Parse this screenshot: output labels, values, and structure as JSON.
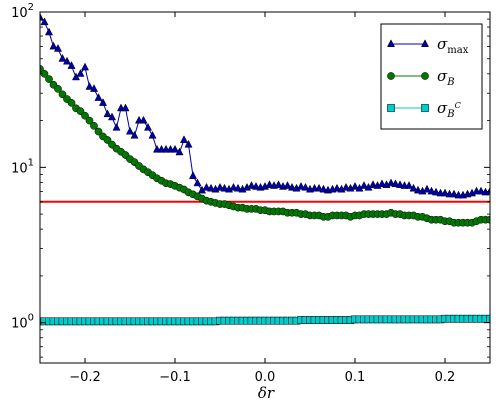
{
  "chart_data": {
    "type": "line",
    "title": "",
    "xlabel": "δr",
    "ylabel": "",
    "xlim": [
      -0.25,
      0.25
    ],
    "ylim": [
      0.55,
      100
    ],
    "yscale": "log",
    "grid": false,
    "legend_position": "top-right",
    "x_ticks": [
      -0.2,
      -0.1,
      0.0,
      0.1,
      0.2
    ],
    "x_tick_labels": [
      "−0.2",
      "−0.1",
      "0.0",
      "0.1",
      "0.2"
    ],
    "y_ticks": [
      1,
      10,
      100
    ],
    "y_tick_labels": [
      {
        "base": "10",
        "exp": "0"
      },
      {
        "base": "10",
        "exp": "1"
      },
      {
        "base": "10",
        "exp": "2"
      }
    ],
    "legend": [
      {
        "series": 0,
        "base": "σ",
        "sub": "max",
        "sup": ""
      },
      {
        "series": 1,
        "base": "σ",
        "sub": "B",
        "sup": ""
      },
      {
        "series": 2,
        "base": "σ",
        "sub": "B",
        "sup": "C"
      }
    ],
    "series": [
      {
        "color": "#0000aa",
        "marker": "triangle",
        "x": [
          -0.25,
          -0.245,
          -0.24,
          -0.235,
          -0.23,
          -0.225,
          -0.22,
          -0.215,
          -0.21,
          -0.205,
          -0.2,
          -0.195,
          -0.19,
          -0.185,
          -0.18,
          -0.175,
          -0.17,
          -0.165,
          -0.16,
          -0.155,
          -0.15,
          -0.145,
          -0.14,
          -0.135,
          -0.13,
          -0.125,
          -0.12,
          -0.115,
          -0.11,
          -0.105,
          -0.1,
          -0.095,
          -0.09,
          -0.085,
          -0.08,
          -0.075,
          -0.07,
          -0.065,
          -0.06,
          -0.055,
          -0.05,
          -0.045,
          -0.04,
          -0.035,
          -0.03,
          -0.025,
          -0.02,
          -0.015,
          -0.01,
          -0.005,
          0.0,
          0.005,
          0.01,
          0.015,
          0.02,
          0.025,
          0.03,
          0.035,
          0.04,
          0.045,
          0.05,
          0.055,
          0.06,
          0.065,
          0.07,
          0.075,
          0.08,
          0.085,
          0.09,
          0.095,
          0.1,
          0.105,
          0.11,
          0.115,
          0.12,
          0.125,
          0.13,
          0.135,
          0.14,
          0.145,
          0.15,
          0.155,
          0.16,
          0.165,
          0.17,
          0.175,
          0.18,
          0.185,
          0.19,
          0.195,
          0.2,
          0.205,
          0.21,
          0.215,
          0.22,
          0.225,
          0.23,
          0.235,
          0.24,
          0.245,
          0.25
        ],
        "values": [
          92,
          86,
          74,
          60,
          58,
          50,
          48,
          45,
          38,
          40,
          44,
          33,
          32,
          28,
          26,
          22,
          21,
          18,
          24,
          24,
          17,
          16,
          20,
          20,
          18,
          16,
          13,
          13,
          13,
          13,
          13,
          12.5,
          15,
          14,
          8.8,
          7.9,
          7.1,
          7.4,
          7.3,
          7.2,
          7.4,
          7.3,
          7.2,
          7.4,
          7.3,
          7.2,
          7.4,
          7.6,
          7.5,
          7.4,
          7.5,
          7.7,
          7.6,
          7.7,
          7.5,
          7.6,
          7.4,
          7.3,
          7.5,
          7.4,
          7.2,
          7.3,
          7.3,
          7.2,
          7.1,
          7.2,
          7.3,
          7.2,
          7.4,
          7.3,
          7.5,
          7.3,
          7.6,
          7.4,
          7.7,
          7.6,
          7.8,
          7.7,
          7.9,
          7.8,
          7.7,
          7.6,
          7.6,
          7.3,
          7.1,
          7.0,
          7.2,
          7.0,
          6.9,
          6.8,
          6.8,
          6.7,
          6.7,
          6.6,
          6.6,
          6.7,
          6.8,
          7.0,
          7.0,
          6.9,
          7.0
        ]
      },
      {
        "color": "#007700",
        "marker": "circle",
        "x": [
          -0.25,
          -0.245,
          -0.24,
          -0.235,
          -0.23,
          -0.225,
          -0.22,
          -0.215,
          -0.21,
          -0.205,
          -0.2,
          -0.195,
          -0.19,
          -0.185,
          -0.18,
          -0.175,
          -0.17,
          -0.165,
          -0.16,
          -0.155,
          -0.15,
          -0.145,
          -0.14,
          -0.135,
          -0.13,
          -0.125,
          -0.12,
          -0.115,
          -0.11,
          -0.105,
          -0.1,
          -0.095,
          -0.09,
          -0.085,
          -0.08,
          -0.075,
          -0.07,
          -0.065,
          -0.06,
          -0.055,
          -0.05,
          -0.045,
          -0.04,
          -0.035,
          -0.03,
          -0.025,
          -0.02,
          -0.015,
          -0.01,
          -0.005,
          0.0,
          0.005,
          0.01,
          0.015,
          0.02,
          0.025,
          0.03,
          0.035,
          0.04,
          0.045,
          0.05,
          0.055,
          0.06,
          0.065,
          0.07,
          0.075,
          0.08,
          0.085,
          0.09,
          0.095,
          0.1,
          0.105,
          0.11,
          0.115,
          0.12,
          0.125,
          0.13,
          0.135,
          0.14,
          0.145,
          0.15,
          0.155,
          0.16,
          0.165,
          0.17,
          0.175,
          0.18,
          0.185,
          0.19,
          0.195,
          0.2,
          0.205,
          0.21,
          0.215,
          0.22,
          0.225,
          0.23,
          0.235,
          0.24,
          0.245,
          0.25
        ],
        "values": [
          43,
          40,
          37,
          34,
          32,
          29.5,
          27.5,
          26,
          24,
          23,
          21.5,
          20,
          18.5,
          17,
          15.8,
          15,
          14,
          13.2,
          12.6,
          12,
          11.3,
          10.8,
          10.2,
          9.7,
          9.3,
          8.9,
          8.5,
          8.2,
          7.9,
          7.8,
          7.6,
          7.4,
          7.2,
          6.9,
          6.7,
          6.5,
          6.3,
          6.1,
          6.0,
          5.9,
          5.8,
          5.8,
          5.7,
          5.6,
          5.5,
          5.5,
          5.4,
          5.4,
          5.4,
          5.3,
          5.3,
          5.2,
          5.2,
          5.2,
          5.2,
          5.1,
          5.1,
          5.1,
          5.0,
          5.0,
          4.9,
          4.9,
          4.9,
          4.8,
          4.8,
          4.9,
          4.9,
          4.9,
          4.9,
          4.8,
          4.9,
          4.9,
          5.0,
          5.0,
          5.0,
          5.0,
          5.0,
          5.0,
          5.1,
          5.0,
          5.0,
          4.9,
          4.9,
          4.9,
          4.8,
          4.8,
          4.7,
          4.6,
          4.6,
          4.6,
          4.5,
          4.5,
          4.4,
          4.4,
          4.4,
          4.4,
          4.4,
          4.5,
          4.6,
          4.6,
          4.6
        ]
      },
      {
        "color": "#00cccc",
        "marker": "square",
        "x": [
          -0.25,
          -0.245,
          -0.24,
          -0.235,
          -0.23,
          -0.225,
          -0.22,
          -0.215,
          -0.21,
          -0.205,
          -0.2,
          -0.195,
          -0.19,
          -0.185,
          -0.18,
          -0.175,
          -0.17,
          -0.165,
          -0.16,
          -0.155,
          -0.15,
          -0.145,
          -0.14,
          -0.135,
          -0.13,
          -0.125,
          -0.12,
          -0.115,
          -0.11,
          -0.105,
          -0.1,
          -0.095,
          -0.09,
          -0.085,
          -0.08,
          -0.075,
          -0.07,
          -0.065,
          -0.06,
          -0.055,
          -0.05,
          -0.045,
          -0.04,
          -0.035,
          -0.03,
          -0.025,
          -0.02,
          -0.015,
          -0.01,
          -0.005,
          0.0,
          0.005,
          0.01,
          0.015,
          0.02,
          0.025,
          0.03,
          0.035,
          0.04,
          0.045,
          0.05,
          0.055,
          0.06,
          0.065,
          0.07,
          0.075,
          0.08,
          0.085,
          0.09,
          0.095,
          0.1,
          0.105,
          0.11,
          0.115,
          0.12,
          0.125,
          0.13,
          0.135,
          0.14,
          0.145,
          0.15,
          0.155,
          0.16,
          0.165,
          0.17,
          0.175,
          0.18,
          0.185,
          0.19,
          0.195,
          0.2,
          0.205,
          0.21,
          0.215,
          0.22,
          0.225,
          0.23,
          0.235,
          0.24,
          0.245,
          0.25
        ],
        "values": [
          1.02,
          1.02,
          1.02,
          1.02,
          1.02,
          1.02,
          1.02,
          1.02,
          1.02,
          1.02,
          1.02,
          1.02,
          1.02,
          1.02,
          1.02,
          1.02,
          1.02,
          1.02,
          1.02,
          1.02,
          1.02,
          1.02,
          1.02,
          1.02,
          1.02,
          1.02,
          1.02,
          1.02,
          1.02,
          1.02,
          1.02,
          1.02,
          1.02,
          1.02,
          1.02,
          1.02,
          1.02,
          1.02,
          1.02,
          1.02,
          1.03,
          1.03,
          1.03,
          1.03,
          1.03,
          1.03,
          1.03,
          1.03,
          1.03,
          1.03,
          1.03,
          1.03,
          1.03,
          1.03,
          1.03,
          1.03,
          1.03,
          1.03,
          1.04,
          1.04,
          1.04,
          1.04,
          1.04,
          1.04,
          1.04,
          1.04,
          1.04,
          1.04,
          1.04,
          1.04,
          1.05,
          1.05,
          1.05,
          1.05,
          1.05,
          1.05,
          1.05,
          1.05,
          1.05,
          1.05,
          1.05,
          1.05,
          1.05,
          1.05,
          1.05,
          1.05,
          1.05,
          1.05,
          1.05,
          1.05,
          1.06,
          1.06,
          1.06,
          1.06,
          1.06,
          1.06,
          1.06,
          1.06,
          1.06,
          1.06,
          1.06
        ]
      }
    ],
    "reference_lines": [
      {
        "y": 6.0,
        "color": "#ff0000"
      }
    ]
  }
}
